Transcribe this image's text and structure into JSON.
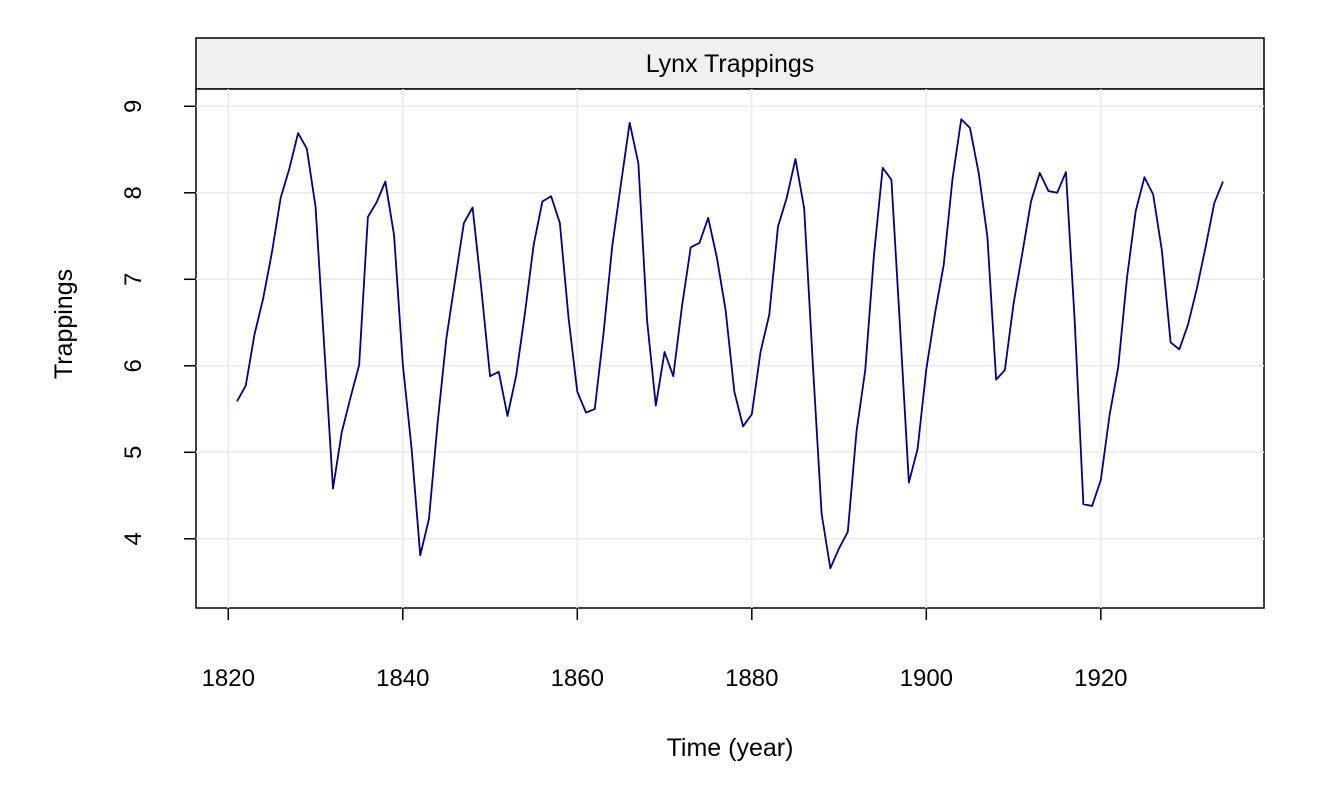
{
  "chart_data": {
    "type": "line",
    "title": "Lynx Trappings",
    "xlabel": "Time (year)",
    "ylabel": "Trappings",
    "xlim": [
      1816.3,
      1938.7
    ],
    "ylim": [
      3.2,
      9.2
    ],
    "x_ticks": [
      1820,
      1840,
      1860,
      1880,
      1900,
      1920
    ],
    "y_ticks": [
      4,
      5,
      6,
      7,
      8,
      9
    ],
    "grid": true,
    "series": [
      {
        "color": "#000080",
        "x_start": 1821,
        "x_step": 1,
        "values": [
          5.59,
          5.77,
          6.36,
          6.78,
          7.31,
          7.94,
          8.28,
          8.69,
          8.51,
          7.84,
          6.22,
          4.58,
          5.23,
          5.63,
          6.01,
          7.72,
          7.89,
          8.13,
          7.51,
          6.02,
          5.05,
          3.81,
          4.23,
          5.35,
          6.32,
          6.99,
          7.65,
          7.83,
          6.89,
          5.88,
          5.93,
          5.42,
          5.89,
          6.61,
          7.4,
          7.9,
          7.96,
          7.65,
          6.55,
          5.7,
          5.46,
          5.5,
          6.37,
          7.38,
          8.1,
          8.81,
          8.34,
          6.52,
          5.54,
          6.16,
          5.88,
          6.69,
          7.37,
          7.42,
          7.71,
          7.25,
          6.64,
          5.7,
          5.3,
          5.44,
          6.16,
          6.59,
          7.61,
          7.94,
          8.39,
          7.82,
          6.01,
          4.29,
          3.66,
          3.89,
          4.08,
          5.24,
          5.95,
          7.28,
          8.29,
          8.15,
          6.43,
          4.65,
          5.04,
          5.96,
          6.61,
          7.17,
          8.16,
          8.85,
          8.75,
          8.23,
          7.49,
          5.84,
          5.95,
          6.72,
          7.3,
          7.9,
          8.23,
          8.02,
          8.0,
          8.24,
          6.53,
          4.4,
          4.38,
          4.68,
          5.43,
          5.99,
          7.02,
          7.79,
          8.18,
          7.98,
          7.33,
          6.27,
          6.19,
          6.48,
          6.89,
          7.37,
          7.88,
          8.13
        ]
      }
    ]
  }
}
